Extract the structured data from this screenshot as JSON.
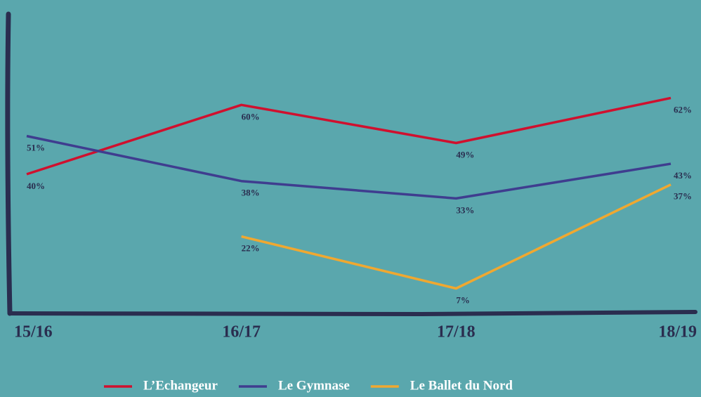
{
  "chart_data": {
    "type": "line",
    "categories": [
      "15/16",
      "16/17",
      "17/18",
      "18/19"
    ],
    "series": [
      {
        "name": "L’Echangeur",
        "color": "#d0102e",
        "values": [
          40,
          60,
          49,
          62
        ],
        "value_labels": [
          "40%",
          "60%",
          "49%",
          "62%"
        ]
      },
      {
        "name": "Le Gymnase",
        "color": "#3f3d8f",
        "values": [
          51,
          38,
          33,
          43
        ],
        "value_labels": [
          "51%",
          "38%",
          "33%",
          "43%"
        ]
      },
      {
        "name": "Le Ballet du Nord",
        "color": "#f0a830",
        "values": [
          null,
          22,
          7,
          37
        ],
        "value_labels": [
          null,
          "22%",
          "7%",
          "37%"
        ]
      }
    ],
    "ylim": [
      0,
      70
    ]
  }
}
